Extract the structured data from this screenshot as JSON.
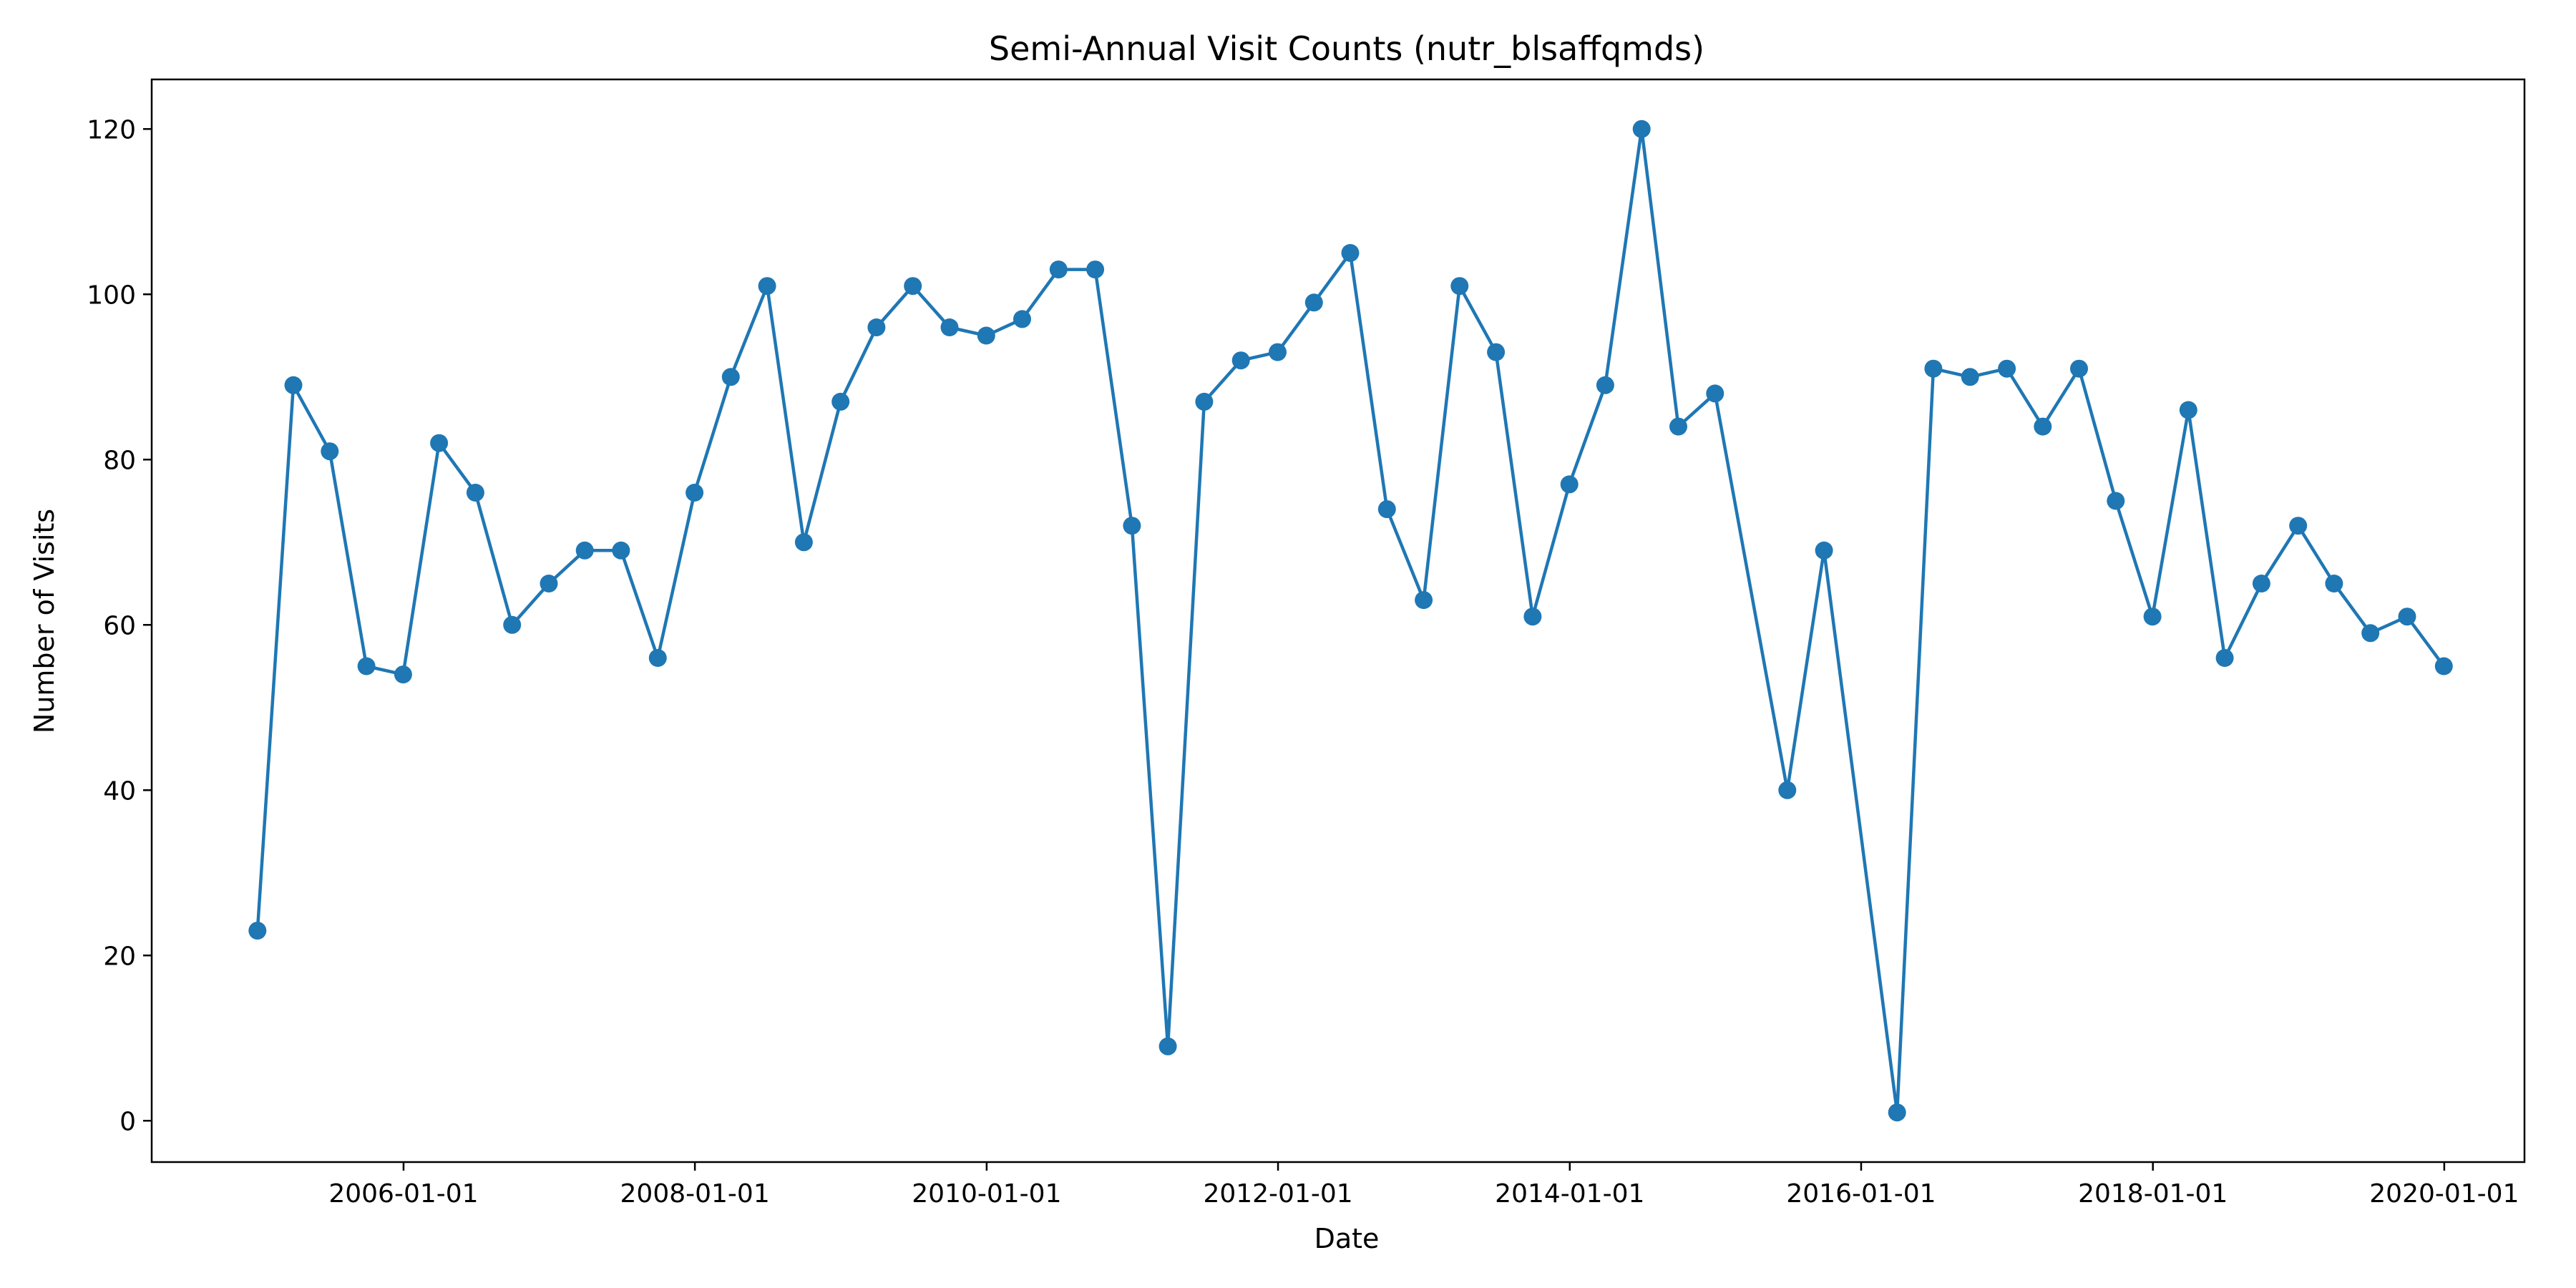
{
  "chart_data": {
    "type": "line",
    "title": "Semi-Annual Visit Counts (nutr_blsaffqmds)",
    "xlabel": "Date",
    "ylabel": "Number of Visits",
    "x_tick_labels": [
      "2006-01-01",
      "2008-01-01",
      "2010-01-01",
      "2012-01-01",
      "2014-01-01",
      "2016-01-01",
      "2018-01-01",
      "2020-01-01"
    ],
    "y_ticks": [
      0,
      20,
      40,
      60,
      80,
      100,
      120
    ],
    "ylim": [
      -5,
      126
    ],
    "xlim": [
      "2004-04-10",
      "2020-07-20"
    ],
    "grid": false,
    "color": "#1f77b4",
    "marker": "circle",
    "series": [
      {
        "x": [
          "2004-12-31",
          "2005-03-31",
          "2005-06-30",
          "2005-09-30",
          "2005-12-31",
          "2006-03-31",
          "2006-06-30",
          "2006-09-30",
          "2006-12-31",
          "2007-03-31",
          "2007-06-30",
          "2007-09-30",
          "2007-12-31",
          "2008-03-31",
          "2008-06-30",
          "2008-09-30",
          "2008-12-31",
          "2009-03-31",
          "2009-06-30",
          "2009-09-30",
          "2009-12-31",
          "2010-03-31",
          "2010-06-30",
          "2010-09-30",
          "2010-12-31",
          "2011-03-31",
          "2011-06-30",
          "2011-09-30",
          "2011-12-31",
          "2012-03-31",
          "2012-06-30",
          "2012-09-30",
          "2012-12-31",
          "2013-03-31",
          "2013-06-30",
          "2013-09-30",
          "2013-12-31",
          "2014-03-31",
          "2014-06-30",
          "2014-09-30",
          "2014-12-31",
          "2015-06-30",
          "2015-09-30",
          "2016-03-31",
          "2016-06-30",
          "2016-09-30",
          "2016-12-31",
          "2017-03-31",
          "2017-06-30",
          "2017-09-30",
          "2017-12-31",
          "2018-03-31",
          "2018-06-30",
          "2018-09-30",
          "2018-12-31",
          "2019-03-31",
          "2019-06-30",
          "2019-09-30",
          "2019-12-31"
        ],
        "values": [
          23,
          89,
          81,
          55,
          54,
          82,
          76,
          60,
          65,
          69,
          69,
          56,
          76,
          90,
          101,
          70,
          87,
          96,
          101,
          96,
          95,
          97,
          103,
          103,
          72,
          9,
          87,
          92,
          93,
          99,
          105,
          74,
          63,
          101,
          93,
          61,
          77,
          89,
          120,
          84,
          88,
          40,
          69,
          1,
          91,
          90,
          91,
          84,
          91,
          75,
          61,
          86,
          56,
          65,
          72,
          65,
          59,
          61,
          55
        ]
      }
    ]
  }
}
